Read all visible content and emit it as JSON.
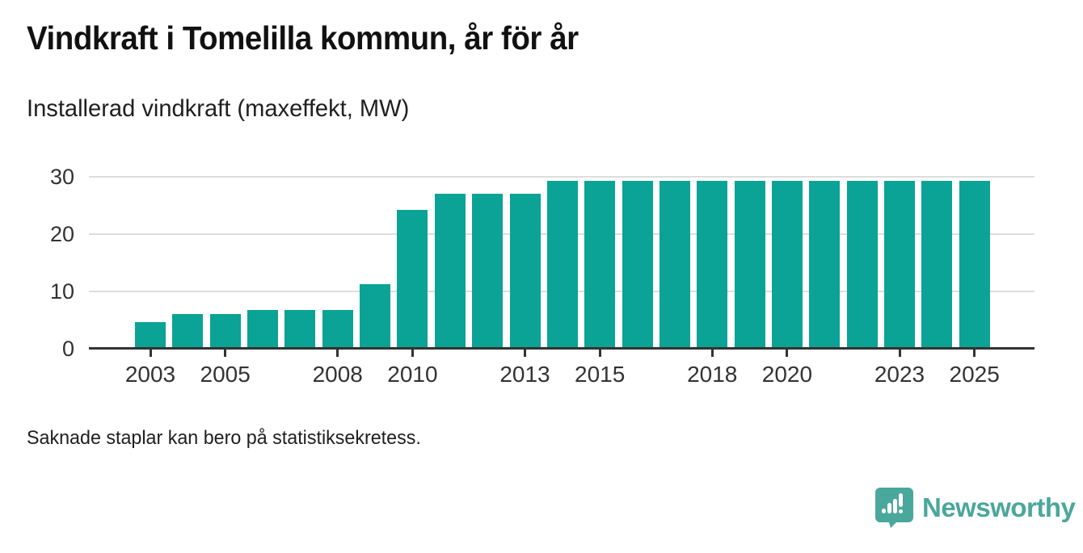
{
  "title": "Vindkraft i Tomelilla kommun, år för år",
  "subtitle": "Installerad vindkraft (maxeffekt, MW)",
  "footnote": "Saknade staplar kan bero på statistiksekretess.",
  "logo": {
    "label": "Newsworthy",
    "icon": "bar-chart-speech-bubble-icon",
    "color": "#4aa79b"
  },
  "colors": {
    "bar": "#0aa396",
    "grid": "#dddddd",
    "axis": "#333333",
    "tick_text": "#333333",
    "title_text": "#111111"
  },
  "chart_data": {
    "type": "bar",
    "title": "Vindkraft i Tomelilla kommun, år för år",
    "subtitle": "Installerad vindkraft (maxeffekt, MW)",
    "xlabel": "",
    "ylabel": "Installerad vindkraft (maxeffekt, MW)",
    "categories": [
      2003,
      2004,
      2005,
      2006,
      2007,
      2008,
      2009,
      2010,
      2011,
      2012,
      2013,
      2014,
      2015,
      2016,
      2017,
      2018,
      2019,
      2020,
      2021,
      2022,
      2023,
      2024,
      2025
    ],
    "values": [
      4.7,
      6,
      6,
      6.7,
      6.7,
      6.7,
      11.2,
      24.2,
      27,
      27,
      27,
      29.3,
      29.3,
      29.3,
      29.3,
      29.3,
      29.3,
      29.3,
      29.3,
      29.3,
      29.3,
      29.3,
      29.3
    ],
    "ylim": [
      0,
      30
    ],
    "yticks": [
      0,
      10,
      20,
      30
    ],
    "xtick_labels": [
      2003,
      2005,
      2008,
      2010,
      2013,
      2015,
      2018,
      2020,
      2023,
      2025
    ],
    "grid": "horizontal",
    "legend": "none",
    "bar_color": "#0aa396",
    "footnote": "Saknade staplar kan bero på statistiksekretess."
  }
}
